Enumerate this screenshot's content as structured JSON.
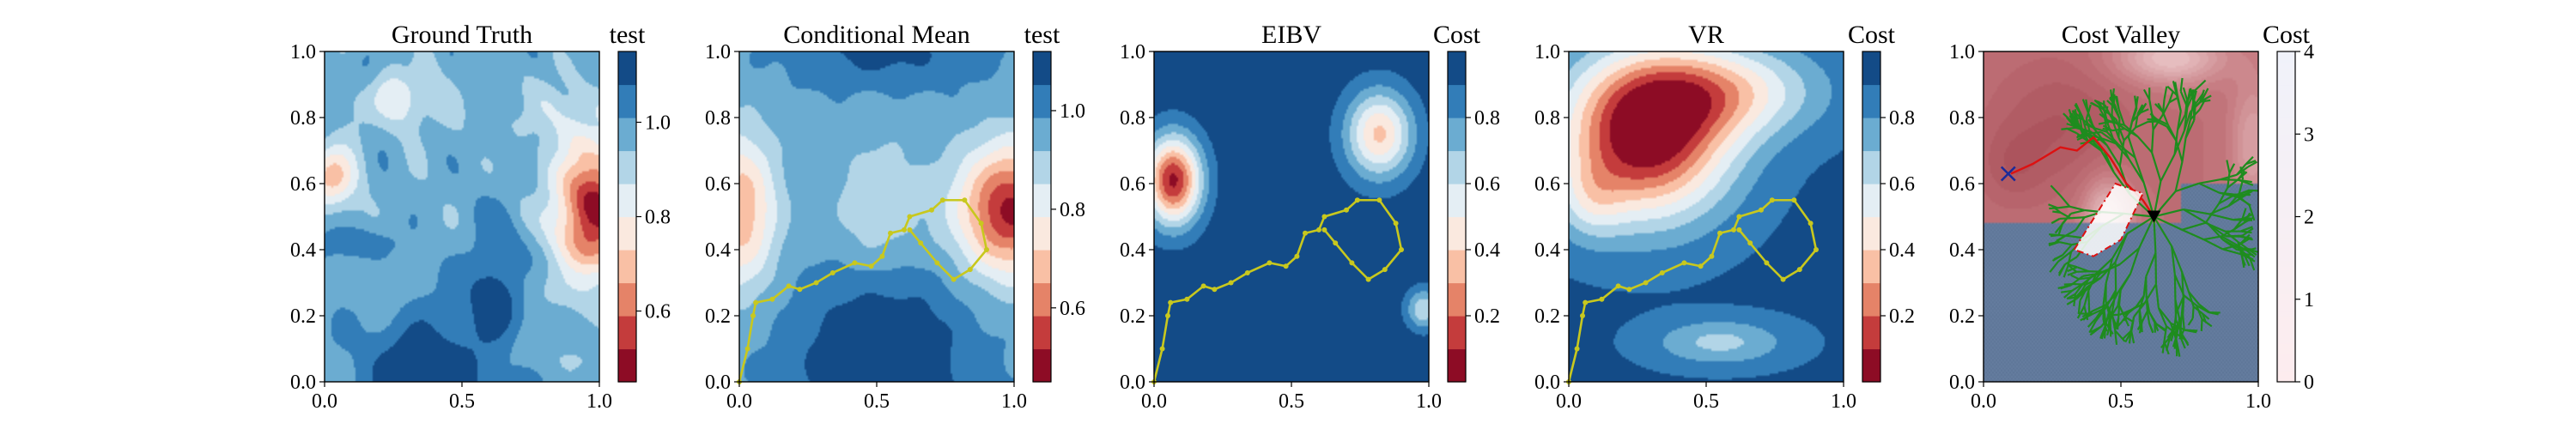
{
  "colors": {
    "rdbu": [
      "#67001f",
      "#b2182b",
      "#d6604d",
      "#f4a582",
      "#fddbc7",
      "#f7f7f7",
      "#d1e5f0",
      "#92c5de",
      "#4393c3",
      "#2166ac",
      "#053061"
    ],
    "trajectory": "#c8c81e",
    "tree": "#1e8c1e",
    "path_red": "#dd1111",
    "obstacle": "#5b7395",
    "marker_x": "#1a2a9a"
  },
  "chart_data": [
    {
      "type": "heatmap",
      "title": "Ground Truth",
      "colorbar": {
        "label": "test",
        "ticks": [
          0.6,
          0.8,
          1.0
        ],
        "range": [
          0.45,
          1.15
        ],
        "levels": 10
      },
      "xlim": [
        0,
        1
      ],
      "ylim": [
        0,
        1
      ],
      "xticks": [
        "0.0",
        "0.5",
        "1.0"
      ],
      "yticks": [
        "0.0",
        "0.2",
        "0.4",
        "0.6",
        "0.8",
        "1.0"
      ],
      "field": "ground_truth"
    },
    {
      "type": "heatmap",
      "title": "Conditional Mean",
      "colorbar": {
        "label": "test",
        "ticks": [
          0.6,
          0.8,
          1.0
        ],
        "range": [
          0.45,
          1.12
        ],
        "levels": 10
      },
      "xlim": [
        0,
        1
      ],
      "ylim": [
        0,
        1
      ],
      "xticks": [
        "0.0",
        "0.5",
        "1.0"
      ],
      "yticks": [
        "0.0",
        "0.2",
        "0.4",
        "0.6",
        "0.8",
        "1.0"
      ],
      "field": "conditional_mean",
      "trajectory": [
        [
          0.0,
          0.0
        ],
        [
          0.03,
          0.1
        ],
        [
          0.05,
          0.2
        ],
        [
          0.06,
          0.24
        ],
        [
          0.12,
          0.25
        ],
        [
          0.18,
          0.29
        ],
        [
          0.22,
          0.28
        ],
        [
          0.28,
          0.3
        ],
        [
          0.34,
          0.33
        ],
        [
          0.42,
          0.36
        ],
        [
          0.48,
          0.35
        ],
        [
          0.52,
          0.38
        ],
        [
          0.55,
          0.45
        ],
        [
          0.6,
          0.46
        ],
        [
          0.62,
          0.5
        ],
        [
          0.7,
          0.52
        ],
        [
          0.74,
          0.55
        ],
        [
          0.82,
          0.55
        ],
        [
          0.88,
          0.48
        ],
        [
          0.9,
          0.4
        ],
        [
          0.84,
          0.34
        ],
        [
          0.78,
          0.31
        ],
        [
          0.72,
          0.36
        ],
        [
          0.66,
          0.42
        ],
        [
          0.62,
          0.46
        ]
      ]
    },
    {
      "type": "heatmap",
      "title": "EIBV",
      "colorbar": {
        "label": "Cost",
        "ticks": [
          0.2,
          0.4,
          0.6,
          0.8
        ],
        "range": [
          0.0,
          1.0
        ],
        "levels": 10
      },
      "xlim": [
        0,
        1
      ],
      "ylim": [
        0,
        1
      ],
      "xticks": [
        "0.0",
        "0.5",
        "1.0"
      ],
      "yticks": [
        "0.0",
        "0.2",
        "0.4",
        "0.6",
        "0.8",
        "1.0"
      ],
      "field": "eibv",
      "trajectory": [
        [
          0.0,
          0.0
        ],
        [
          0.03,
          0.1
        ],
        [
          0.05,
          0.2
        ],
        [
          0.06,
          0.24
        ],
        [
          0.12,
          0.25
        ],
        [
          0.18,
          0.29
        ],
        [
          0.22,
          0.28
        ],
        [
          0.28,
          0.3
        ],
        [
          0.34,
          0.33
        ],
        [
          0.42,
          0.36
        ],
        [
          0.48,
          0.35
        ],
        [
          0.52,
          0.38
        ],
        [
          0.55,
          0.45
        ],
        [
          0.6,
          0.46
        ],
        [
          0.62,
          0.5
        ],
        [
          0.7,
          0.52
        ],
        [
          0.74,
          0.55
        ],
        [
          0.82,
          0.55
        ],
        [
          0.88,
          0.48
        ],
        [
          0.9,
          0.4
        ],
        [
          0.84,
          0.34
        ],
        [
          0.78,
          0.31
        ],
        [
          0.72,
          0.36
        ],
        [
          0.66,
          0.42
        ],
        [
          0.62,
          0.46
        ]
      ]
    },
    {
      "type": "heatmap",
      "title": "VR",
      "colorbar": {
        "label": "Cost",
        "ticks": [
          0.2,
          0.4,
          0.6,
          0.8
        ],
        "range": [
          0.0,
          1.0
        ],
        "levels": 10
      },
      "xlim": [
        0,
        1
      ],
      "ylim": [
        0,
        1
      ],
      "xticks": [
        "0.0",
        "0.5",
        "1.0"
      ],
      "yticks": [
        "0.0",
        "0.2",
        "0.4",
        "0.6",
        "0.8",
        "1.0"
      ],
      "field": "vr",
      "trajectory": [
        [
          0.0,
          0.0
        ],
        [
          0.03,
          0.1
        ],
        [
          0.05,
          0.2
        ],
        [
          0.06,
          0.24
        ],
        [
          0.12,
          0.25
        ],
        [
          0.18,
          0.29
        ],
        [
          0.22,
          0.28
        ],
        [
          0.28,
          0.3
        ],
        [
          0.34,
          0.33
        ],
        [
          0.42,
          0.36
        ],
        [
          0.48,
          0.35
        ],
        [
          0.52,
          0.38
        ],
        [
          0.55,
          0.45
        ],
        [
          0.6,
          0.46
        ],
        [
          0.62,
          0.5
        ],
        [
          0.7,
          0.52
        ],
        [
          0.74,
          0.55
        ],
        [
          0.82,
          0.55
        ],
        [
          0.88,
          0.48
        ],
        [
          0.9,
          0.4
        ],
        [
          0.84,
          0.34
        ],
        [
          0.78,
          0.31
        ],
        [
          0.72,
          0.36
        ],
        [
          0.66,
          0.42
        ],
        [
          0.62,
          0.46
        ]
      ]
    },
    {
      "type": "heatmap",
      "title": "Cost Valley",
      "colorbar": {
        "label": "Cost",
        "ticks": [
          0,
          1,
          2,
          3,
          4
        ],
        "range": [
          0,
          4
        ],
        "levels": 20
      },
      "xlim": [
        0,
        1
      ],
      "ylim": [
        0,
        1
      ],
      "xticks": [
        "0.0",
        "0.5",
        "1.0"
      ],
      "yticks": [
        "0.0",
        "0.2",
        "0.4",
        "0.6",
        "0.8",
        "1.0"
      ],
      "field": "cost_valley",
      "red_path": [
        [
          0.1,
          0.63
        ],
        [
          0.18,
          0.66
        ],
        [
          0.28,
          0.71
        ],
        [
          0.34,
          0.7
        ],
        [
          0.4,
          0.74
        ],
        [
          0.46,
          0.68
        ],
        [
          0.52,
          0.6
        ],
        [
          0.58,
          0.55
        ],
        [
          0.62,
          0.5
        ]
      ],
      "dashed_polygon": [
        [
          0.33,
          0.4
        ],
        [
          0.48,
          0.6
        ],
        [
          0.58,
          0.57
        ],
        [
          0.5,
          0.43
        ],
        [
          0.4,
          0.38
        ],
        [
          0.33,
          0.4
        ]
      ],
      "current_position": [
        0.62,
        0.5
      ],
      "x_marker": [
        0.09,
        0.63
      ]
    }
  ]
}
